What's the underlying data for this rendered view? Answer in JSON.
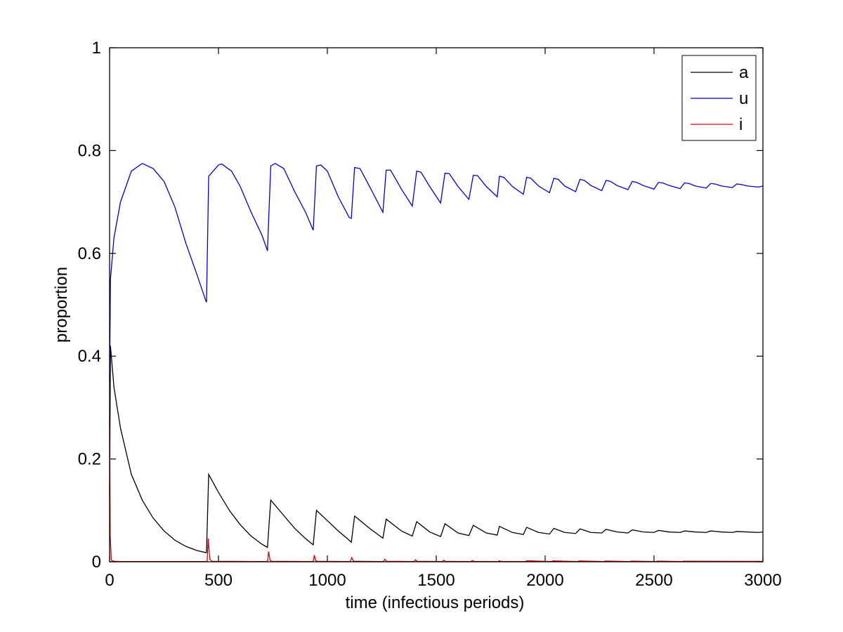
{
  "chart_data": {
    "type": "line",
    "title": "",
    "xlabel": "time (infectious periods)",
    "ylabel": "proportion",
    "xlim": [
      0,
      3000
    ],
    "ylim": [
      0,
      1
    ],
    "xticks": [
      0,
      500,
      1000,
      1500,
      2000,
      2500,
      3000
    ],
    "yticks": [
      0,
      0.2,
      0.4,
      0.6,
      0.8,
      1
    ],
    "xtick_labels": [
      "0",
      "500",
      "1000",
      "1500",
      "2000",
      "2500",
      "3000"
    ],
    "ytick_labels": [
      "0",
      "0.2",
      "0.4",
      "0.6",
      "0.8",
      "1"
    ],
    "grid": false,
    "legend_position": "top-right",
    "series": [
      {
        "name": "a",
        "color": "#000000",
        "points": [
          [
            0,
            0.13
          ],
          [
            4,
            0.42
          ],
          [
            20,
            0.34
          ],
          [
            50,
            0.26
          ],
          [
            100,
            0.17
          ],
          [
            150,
            0.12
          ],
          [
            200,
            0.085
          ],
          [
            250,
            0.06
          ],
          [
            300,
            0.042
          ],
          [
            350,
            0.03
          ],
          [
            400,
            0.022
          ],
          [
            440,
            0.018
          ],
          [
            445,
            0.018
          ],
          [
            455,
            0.17
          ],
          [
            500,
            0.135
          ],
          [
            550,
            0.1
          ],
          [
            600,
            0.072
          ],
          [
            650,
            0.05
          ],
          [
            700,
            0.034
          ],
          [
            725,
            0.028
          ],
          [
            740,
            0.12
          ],
          [
            800,
            0.09
          ],
          [
            850,
            0.065
          ],
          [
            900,
            0.045
          ],
          [
            935,
            0.033
          ],
          [
            950,
            0.1
          ],
          [
            1000,
            0.08
          ],
          [
            1050,
            0.06
          ],
          [
            1100,
            0.042
          ],
          [
            1110,
            0.038
          ],
          [
            1125,
            0.089
          ],
          [
            1200,
            0.063
          ],
          [
            1255,
            0.046
          ],
          [
            1270,
            0.083
          ],
          [
            1340,
            0.06
          ],
          [
            1390,
            0.05
          ],
          [
            1410,
            0.078
          ],
          [
            1470,
            0.058
          ],
          [
            1520,
            0.049
          ],
          [
            1540,
            0.074
          ],
          [
            1600,
            0.056
          ],
          [
            1650,
            0.051
          ],
          [
            1670,
            0.071
          ],
          [
            1730,
            0.056
          ],
          [
            1780,
            0.052
          ],
          [
            1790,
            0.069
          ],
          [
            1850,
            0.057
          ],
          [
            1900,
            0.053
          ],
          [
            1915,
            0.067
          ],
          [
            1970,
            0.057
          ],
          [
            2020,
            0.054
          ],
          [
            2040,
            0.065
          ],
          [
            2090,
            0.057
          ],
          [
            2140,
            0.055
          ],
          [
            2160,
            0.064
          ],
          [
            2210,
            0.057
          ],
          [
            2260,
            0.056
          ],
          [
            2280,
            0.063
          ],
          [
            2330,
            0.058
          ],
          [
            2380,
            0.056
          ],
          [
            2400,
            0.062
          ],
          [
            2450,
            0.058
          ],
          [
            2500,
            0.057
          ],
          [
            2520,
            0.061
          ],
          [
            2570,
            0.058
          ],
          [
            2620,
            0.057
          ],
          [
            2640,
            0.06
          ],
          [
            2690,
            0.058
          ],
          [
            2740,
            0.057
          ],
          [
            2760,
            0.06
          ],
          [
            2810,
            0.058
          ],
          [
            2860,
            0.057
          ],
          [
            2880,
            0.059
          ],
          [
            2930,
            0.058
          ],
          [
            2980,
            0.057
          ],
          [
            3000,
            0.058
          ]
        ]
      },
      {
        "name": "u",
        "color": "#0000cc",
        "points": [
          [
            0,
            0.35
          ],
          [
            4,
            0.55
          ],
          [
            20,
            0.63
          ],
          [
            50,
            0.7
          ],
          [
            100,
            0.76
          ],
          [
            150,
            0.775
          ],
          [
            200,
            0.765
          ],
          [
            250,
            0.74
          ],
          [
            300,
            0.69
          ],
          [
            350,
            0.62
          ],
          [
            400,
            0.56
          ],
          [
            440,
            0.51
          ],
          [
            445,
            0.505
          ],
          [
            455,
            0.75
          ],
          [
            500,
            0.772
          ],
          [
            515,
            0.774
          ],
          [
            560,
            0.76
          ],
          [
            600,
            0.73
          ],
          [
            650,
            0.68
          ],
          [
            700,
            0.635
          ],
          [
            725,
            0.605
          ],
          [
            740,
            0.77
          ],
          [
            760,
            0.775
          ],
          [
            800,
            0.765
          ],
          [
            850,
            0.72
          ],
          [
            900,
            0.68
          ],
          [
            935,
            0.645
          ],
          [
            950,
            0.77
          ],
          [
            970,
            0.772
          ],
          [
            1000,
            0.76
          ],
          [
            1050,
            0.71
          ],
          [
            1100,
            0.67
          ],
          [
            1110,
            0.668
          ],
          [
            1125,
            0.767
          ],
          [
            1150,
            0.765
          ],
          [
            1200,
            0.725
          ],
          [
            1255,
            0.68
          ],
          [
            1270,
            0.762
          ],
          [
            1290,
            0.762
          ],
          [
            1340,
            0.725
          ],
          [
            1390,
            0.692
          ],
          [
            1410,
            0.76
          ],
          [
            1430,
            0.758
          ],
          [
            1470,
            0.73
          ],
          [
            1520,
            0.698
          ],
          [
            1540,
            0.756
          ],
          [
            1560,
            0.755
          ],
          [
            1600,
            0.73
          ],
          [
            1650,
            0.705
          ],
          [
            1670,
            0.752
          ],
          [
            1690,
            0.751
          ],
          [
            1730,
            0.73
          ],
          [
            1780,
            0.71
          ],
          [
            1790,
            0.75
          ],
          [
            1810,
            0.748
          ],
          [
            1850,
            0.73
          ],
          [
            1900,
            0.715
          ],
          [
            1915,
            0.748
          ],
          [
            1935,
            0.746
          ],
          [
            1970,
            0.731
          ],
          [
            2020,
            0.718
          ],
          [
            2040,
            0.746
          ],
          [
            2060,
            0.744
          ],
          [
            2090,
            0.731
          ],
          [
            2140,
            0.72
          ],
          [
            2160,
            0.744
          ],
          [
            2180,
            0.742
          ],
          [
            2210,
            0.732
          ],
          [
            2260,
            0.722
          ],
          [
            2280,
            0.742
          ],
          [
            2300,
            0.74
          ],
          [
            2330,
            0.732
          ],
          [
            2380,
            0.724
          ],
          [
            2400,
            0.74
          ],
          [
            2420,
            0.738
          ],
          [
            2450,
            0.732
          ],
          [
            2500,
            0.725
          ],
          [
            2520,
            0.738
          ],
          [
            2540,
            0.737
          ],
          [
            2570,
            0.732
          ],
          [
            2620,
            0.726
          ],
          [
            2640,
            0.737
          ],
          [
            2660,
            0.736
          ],
          [
            2690,
            0.731
          ],
          [
            2740,
            0.727
          ],
          [
            2760,
            0.736
          ],
          [
            2780,
            0.735
          ],
          [
            2810,
            0.731
          ],
          [
            2860,
            0.728
          ],
          [
            2880,
            0.735
          ],
          [
            2900,
            0.734
          ],
          [
            2930,
            0.731
          ],
          [
            2980,
            0.729
          ],
          [
            3000,
            0.731
          ]
        ]
      },
      {
        "name": "i",
        "color": "#dd0000",
        "points": [
          [
            0,
            0.28
          ],
          [
            3,
            0.05
          ],
          [
            8,
            0.003
          ],
          [
            20,
            0.001
          ],
          [
            60,
            0.0005
          ],
          [
            440,
            0.0005
          ],
          [
            448,
            0.001
          ],
          [
            453,
            0.045
          ],
          [
            460,
            0.005
          ],
          [
            470,
            0.001
          ],
          [
            720,
            0.0005
          ],
          [
            726,
            0.002
          ],
          [
            730,
            0.02
          ],
          [
            737,
            0.003
          ],
          [
            745,
            0.001
          ],
          [
            930,
            0.0005
          ],
          [
            936,
            0.002
          ],
          [
            940,
            0.013
          ],
          [
            947,
            0.002
          ],
          [
            955,
            0.001
          ],
          [
            1105,
            0.0005
          ],
          [
            1112,
            0.008
          ],
          [
            1120,
            0.001
          ],
          [
            1258,
            0.0005
          ],
          [
            1264,
            0.005
          ],
          [
            1272,
            0.001
          ],
          [
            1398,
            0.0005
          ],
          [
            1404,
            0.004
          ],
          [
            1412,
            0.001
          ],
          [
            1528,
            0.0005
          ],
          [
            1534,
            0.003
          ],
          [
            1542,
            0.0008
          ],
          [
            1660,
            0.0005
          ],
          [
            1665,
            0.0025
          ],
          [
            1672,
            0.0008
          ],
          [
            1784,
            0.0005
          ],
          [
            1789,
            0.002
          ],
          [
            1796,
            0.0008
          ],
          [
            1910,
            0.0005
          ],
          [
            1915,
            0.002
          ],
          [
            2030,
            0.0005
          ],
          [
            2035,
            0.0018
          ],
          [
            2150,
            0.0005
          ],
          [
            2155,
            0.0016
          ],
          [
            2270,
            0.0005
          ],
          [
            2275,
            0.0015
          ],
          [
            2390,
            0.0005
          ],
          [
            2395,
            0.0014
          ],
          [
            2510,
            0.0005
          ],
          [
            2515,
            0.0013
          ],
          [
            2630,
            0.0005
          ],
          [
            2635,
            0.0012
          ],
          [
            3000,
            0.0008
          ]
        ]
      }
    ]
  }
}
